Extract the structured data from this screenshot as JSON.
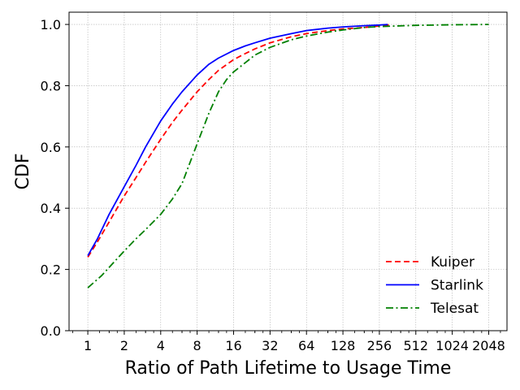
{
  "chart_data": {
    "type": "line",
    "xlabel": "Ratio of Path Lifetime to Usage Time",
    "ylabel": "CDF",
    "x_scale": "log2",
    "xlim": [
      0.7,
      2900
    ],
    "ylim": [
      0,
      1.04
    ],
    "x_ticks": [
      1,
      2,
      4,
      8,
      16,
      32,
      64,
      128,
      256,
      512,
      1024,
      2048
    ],
    "x_tick_labels": [
      "1",
      "2",
      "4",
      "8",
      "16",
      "32",
      "64",
      "128",
      "256",
      "512",
      "1024",
      "2048"
    ],
    "y_ticks": [
      0.0,
      0.2,
      0.4,
      0.6,
      0.8,
      1.0
    ],
    "y_tick_labels": [
      "0.0",
      "0.2",
      "0.4",
      "0.6",
      "0.8",
      "1.0"
    ],
    "grid": true,
    "legend_position": "lower-right",
    "series": [
      {
        "name": "Kuiper",
        "color": "#ff0000",
        "line_style": "dashed",
        "x": [
          1,
          1.2,
          1.5,
          2,
          2.5,
          3,
          4,
          5,
          6,
          8,
          10,
          12,
          16,
          20,
          24,
          32,
          48,
          64,
          96,
          128,
          192,
          256,
          320
        ],
        "y": [
          0.24,
          0.29,
          0.355,
          0.44,
          0.5,
          0.55,
          0.625,
          0.68,
          0.72,
          0.78,
          0.82,
          0.85,
          0.885,
          0.905,
          0.92,
          0.94,
          0.96,
          0.97,
          0.98,
          0.985,
          0.99,
          0.995,
          1.0
        ]
      },
      {
        "name": "Starlink",
        "color": "#0000ff",
        "line_style": "solid",
        "x": [
          1,
          1.2,
          1.5,
          2,
          2.5,
          3,
          4,
          5,
          6,
          8,
          10,
          12,
          16,
          20,
          24,
          32,
          48,
          64,
          96,
          128,
          192,
          256,
          300
        ],
        "y": [
          0.245,
          0.3,
          0.38,
          0.47,
          0.54,
          0.6,
          0.685,
          0.74,
          0.78,
          0.835,
          0.87,
          0.89,
          0.915,
          0.93,
          0.94,
          0.955,
          0.97,
          0.98,
          0.988,
          0.992,
          0.996,
          0.998,
          1.0
        ]
      },
      {
        "name": "Telesat",
        "color": "#008000",
        "line_style": "dashdot",
        "x": [
          1,
          1.3,
          1.7,
          2,
          2.5,
          3,
          4,
          5,
          6,
          7,
          8,
          10,
          12,
          14,
          16,
          20,
          24,
          32,
          48,
          64,
          96,
          128,
          192,
          256,
          512,
          1024,
          2048
        ],
        "y": [
          0.14,
          0.18,
          0.23,
          0.26,
          0.3,
          0.33,
          0.38,
          0.43,
          0.48,
          0.55,
          0.61,
          0.71,
          0.78,
          0.82,
          0.845,
          0.875,
          0.9,
          0.925,
          0.95,
          0.962,
          0.975,
          0.982,
          0.99,
          0.993,
          0.997,
          0.999,
          1.0
        ]
      }
    ]
  }
}
